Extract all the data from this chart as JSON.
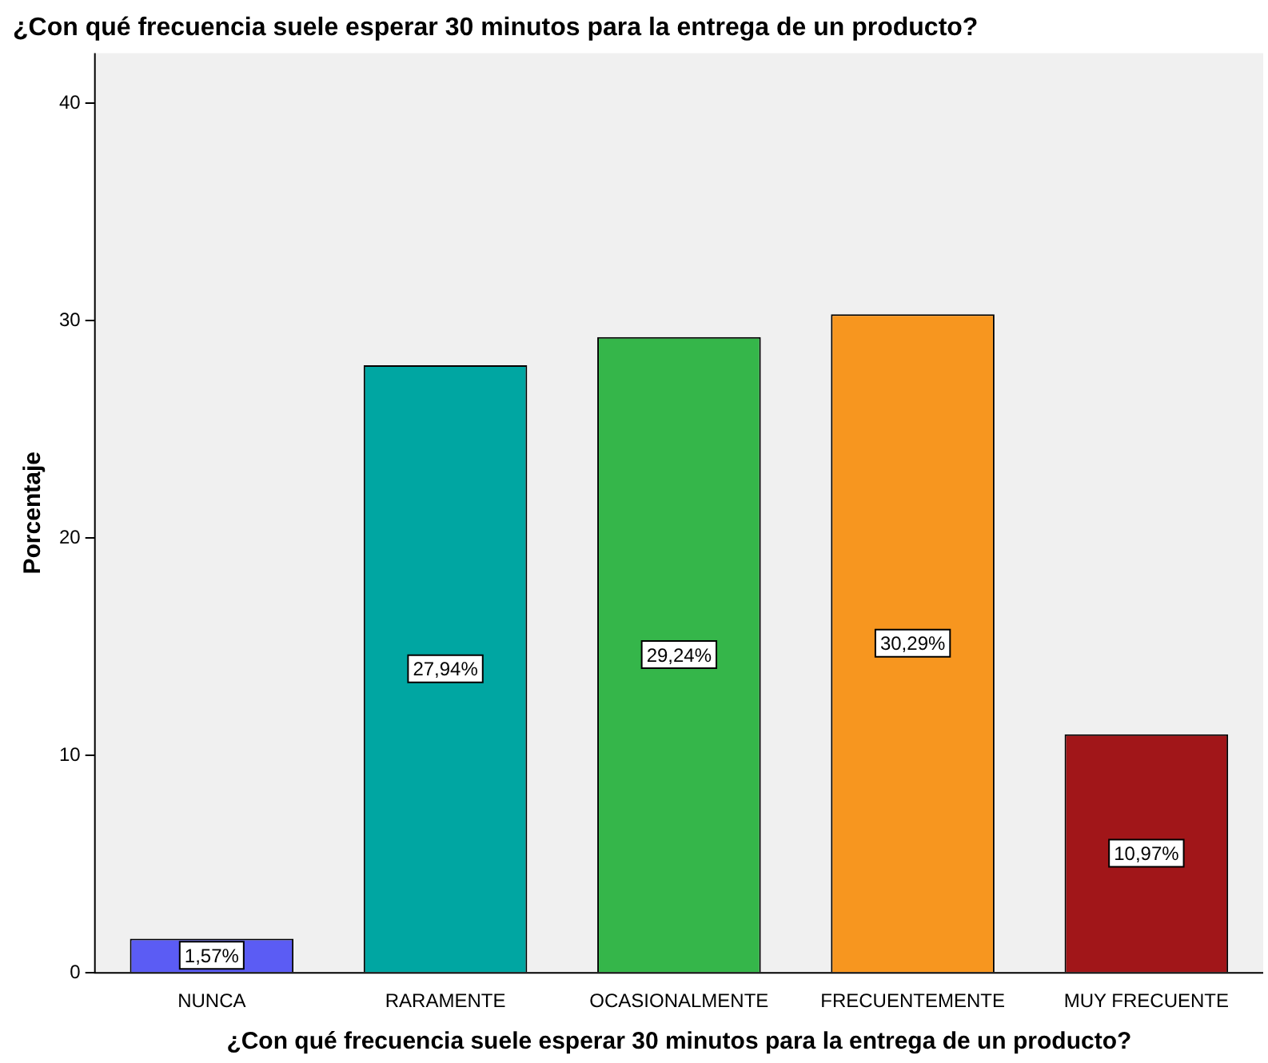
{
  "chart_data": {
    "type": "bar",
    "title": "¿Con qué frecuencia suele esperar 30 minutos para la entrega de un producto?",
    "xlabel": "¿Con qué frecuencia suele esperar 30 minutos para la entrega de un producto?",
    "ylabel": "Porcentaje",
    "categories": [
      "NUNCA",
      "RARAMENTE",
      "OCASIONALMENTE",
      "FRECUENTEMENTE",
      "MUY FRECUENTE"
    ],
    "values": [
      1.57,
      27.94,
      29.24,
      30.29,
      10.97
    ],
    "colors": [
      "#5b5cf4",
      "#00a6a2",
      "#35b64a",
      "#f7961f",
      "#a11619"
    ],
    "value_labels": [
      "1,57%",
      "27,94%",
      "29,24%",
      "30,29%",
      "10,97%"
    ],
    "ylim": [
      0,
      42.3
    ],
    "yticks": [
      0,
      10,
      20,
      30,
      40
    ],
    "grid": false,
    "legend": false
  }
}
